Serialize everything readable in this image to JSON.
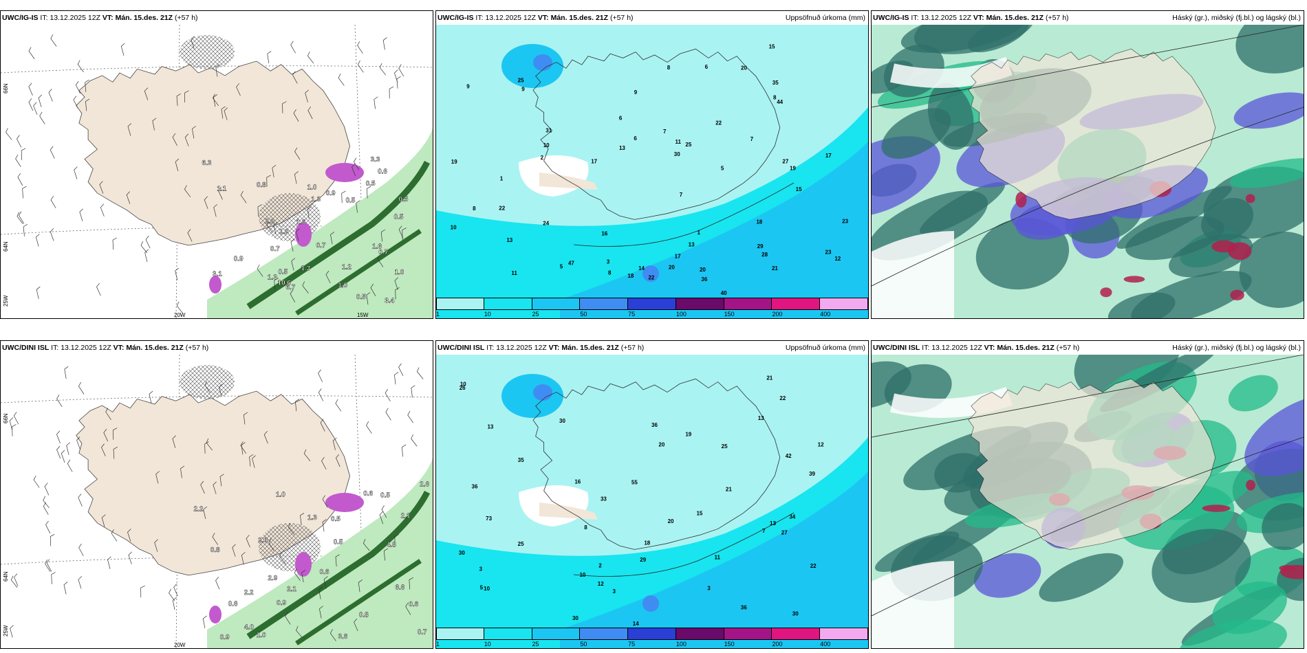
{
  "colors": {
    "land": "#f2e6d8",
    "precip_light": "#aaf3f3",
    "precip_mid": "#18e5ef",
    "precip_high": "#1cc6f2",
    "precip_blue": "#3f8df2",
    "precip_deep": "#2a3fd6",
    "precip_purple": "#7a0a70",
    "precip_magenta": "#e0157f",
    "precip_pink": "#f2a9f0",
    "cloud_teal": "#2f6f6a",
    "cloud_green": "#23b98a",
    "cloud_violet": "#5a56d8",
    "cloud_red": "#b0204e",
    "snow_purple": "#c25acd",
    "rain_green": "#2d6d2f"
  },
  "panels": [
    {
      "row": "top",
      "col": "wind",
      "model": "UWC/IG-IS",
      "it_label": "IT:",
      "it_value": "13.12.2025 12Z",
      "vt_label": "VT:",
      "vt_value": "Mán. 15.des. 21Z",
      "lead": "(+57 h)",
      "right_title": "",
      "lat_labels": [
        "66N",
        "64N",
        "25W"
      ],
      "lon_labels": [
        "20W",
        "15W"
      ],
      "values": [
        "0.5",
        "1.1",
        "0.5",
        "1.3",
        "0.7",
        "3.4",
        "1.3",
        "1.6",
        "0.9",
        "0.6",
        "3.3",
        "2.2",
        "0.7",
        "1.2",
        "10.6",
        "6.3",
        "6.7",
        "3.1",
        "1.0",
        "0.5",
        "1.6",
        "0.5",
        "1.0",
        "0.7",
        "1.3",
        "0.8",
        "1.0",
        "1.2",
        "0.5",
        "0.9",
        "0.5"
      ]
    },
    {
      "row": "top",
      "col": "precip",
      "model": "UWC/IG-IS",
      "it_label": "IT:",
      "it_value": "13.12.2025 12Z",
      "vt_label": "VT:",
      "vt_value": "Mán. 15.des. 21Z",
      "lead": "(+57 h)",
      "right_title": "Uppsöfnuð úrkoma (mm)",
      "values": [
        "8",
        "6",
        "7",
        "7",
        "3",
        "8",
        "9",
        "8",
        "10",
        "8",
        "2",
        "30",
        "20",
        "44",
        "18",
        "14",
        "13",
        "12",
        "22",
        "17",
        "9",
        "1",
        "1",
        "6",
        "5",
        "11",
        "21",
        "11",
        "7",
        "5",
        "6",
        "16",
        "13",
        "15",
        "18",
        "17",
        "25",
        "9",
        "19",
        "13",
        "20",
        "22",
        "27",
        "31",
        "24",
        "23",
        "22",
        "40",
        "35",
        "36",
        "29",
        "28",
        "23",
        "19",
        "25",
        "15",
        "10",
        "17",
        "20",
        "47"
      ]
    },
    {
      "row": "top",
      "col": "cloud",
      "model": "UWC/IG-IS",
      "it_label": "IT:",
      "it_value": "13.12.2025 12Z",
      "vt_label": "VT:",
      "vt_value": "Mán. 15.des. 21Z",
      "lead": "(+57 h)",
      "right_title": "Háský (gr.), miðský (fj.bl.) og lágský (bl.)"
    },
    {
      "row": "bottom",
      "col": "wind",
      "model": "UWC/DINI ISL",
      "it_label": "IT:",
      "it_value": "13.12.2025 12Z",
      "vt_label": "VT:",
      "vt_value": "Mán. 15.des. 21Z",
      "lead": "(+57 h)",
      "right_title": "",
      "lat_labels": [
        "66N",
        "64N",
        "25W"
      ],
      "lon_labels": [
        "20W"
      ],
      "values": [
        "2.1",
        "0.6",
        "0.6",
        "2.1",
        "2.0",
        "6.6",
        "4.8",
        "0.9",
        "0.6",
        "0.6",
        "2.9",
        "0.8",
        "1.0",
        "1.3",
        "0.7",
        "0.5",
        "4.0",
        "2.2",
        "0.5",
        "0.5",
        "0.9",
        "0.8",
        "3.6",
        "2.2",
        "1.0",
        "2.6"
      ]
    },
    {
      "row": "bottom",
      "col": "precip",
      "model": "UWC/DINI ISL",
      "it_label": "IT:",
      "it_value": "13.12.2025 12Z",
      "vt_label": "VT:",
      "vt_value": "Mán. 15.des. 21Z",
      "lead": "(+57 h)",
      "right_title": "Uppsöfnuð úrkoma (mm)",
      "values": [
        "12",
        "13",
        "13",
        "10",
        "8",
        "30",
        "20",
        "55",
        "19",
        "22",
        "21",
        "16",
        "20",
        "11",
        "12",
        "10",
        "3",
        "3",
        "3",
        "2",
        "13",
        "25",
        "22",
        "27",
        "29",
        "30",
        "36",
        "33",
        "39",
        "25",
        "36",
        "30",
        "35",
        "42",
        "36",
        "34",
        "26",
        "30",
        "18",
        "21",
        "73",
        "14",
        "10",
        "7",
        "5",
        "15"
      ]
    },
    {
      "row": "bottom",
      "col": "cloud",
      "model": "UWC/DINI ISL",
      "it_label": "IT:",
      "it_value": "13.12.2025 12Z",
      "vt_label": "VT:",
      "vt_value": "Mán. 15.des. 21Z",
      "lead": "(+57 h)",
      "right_title": "Háský (gr.), miðský (fj.bl.) og lágský (bl.)"
    }
  ],
  "colorbar": {
    "ticks": [
      "1",
      "10",
      "25",
      "50",
      "75",
      "100",
      "150",
      "200",
      "400"
    ]
  }
}
